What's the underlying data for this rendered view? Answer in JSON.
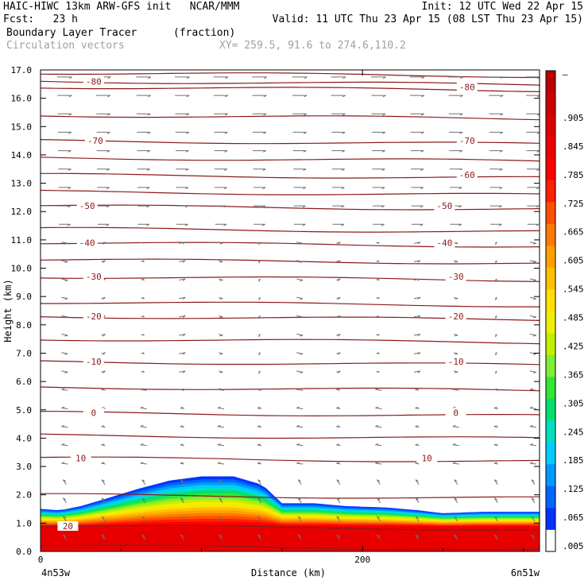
{
  "header": {
    "line1_left": "HAIC-HIWC 13km ARW-GFS init   NCAR/MMM",
    "line1_right": "Init: 12 UTC Wed 22 Apr 15",
    "fcst": "Fcst:   23 h",
    "valid": "Valid: 11 UTC Thu 23 Apr 15 (08 LST Thu 23 Apr 15)",
    "field_name": "Boundary Layer Tracer",
    "field_unit": "(fraction)",
    "vectors_label": "Circulation vectors",
    "xy_label": "XY= 259.5, 91.6 to 274.6,110.2"
  },
  "chart_data": {
    "type": "heatmap",
    "xlabel": "Distance (km)",
    "ylabel": "Height (km)",
    "xlim": [
      0,
      310
    ],
    "ylim": [
      0,
      17
    ],
    "x_ticks": [
      {
        "value": 0,
        "label": "0"
      },
      {
        "value": 200,
        "label": "200"
      }
    ],
    "x_end_labels": {
      "left": "4n53w",
      "right": "6n51w"
    },
    "y_ticks": [
      "0.0",
      "1.0",
      "2.0",
      "3.0",
      "4.0",
      "5.0",
      "6.0",
      "7.0",
      "8.0",
      "9.0",
      "10.0",
      "11.0",
      "12.0",
      "13.0",
      "14.0",
      "15.0",
      "16.0",
      "17.0"
    ],
    "colorbar": {
      "labels": [
        ".005",
        ".065",
        ".125",
        ".185",
        ".245",
        ".305",
        ".365",
        ".425",
        ".485",
        ".545",
        ".605",
        ".665",
        ".725",
        ".785",
        ".845",
        ".905",
        "–"
      ],
      "colors": [
        "#ffffff",
        "#0033ff",
        "#0066ff",
        "#0099ff",
        "#00ccff",
        "#00e0c0",
        "#00e070",
        "#33e633",
        "#80ee33",
        "#c0f000",
        "#eef000",
        "#ffe000",
        "#ffc000",
        "#ffa000",
        "#ff7a00",
        "#ff5000",
        "#ff2000",
        "#ff0000",
        "#ee0000",
        "#dd0000",
        "#cc0000",
        "#bb0000"
      ]
    },
    "temperature_contours": {
      "color": "#8b1a1a",
      "levels": [
        20,
        10,
        0,
        -10,
        -20,
        -30,
        -40,
        -50,
        -60,
        -70,
        -80
      ],
      "labeled": [
        {
          "value": "20",
          "x": 17,
          "h": 0.9
        },
        {
          "value": "10",
          "x": 25,
          "h": 3.3
        },
        {
          "value": "10",
          "x": 240,
          "h": 3.3
        },
        {
          "value": "0",
          "x": 33,
          "h": 4.9
        },
        {
          "value": "0",
          "x": 258,
          "h": 4.9
        },
        {
          "value": "-10",
          "x": 33,
          "h": 6.7
        },
        {
          "value": "-10",
          "x": 258,
          "h": 6.7
        },
        {
          "value": "-20",
          "x": 33,
          "h": 8.3
        },
        {
          "value": "-20",
          "x": 258,
          "h": 8.3
        },
        {
          "value": "-30",
          "x": 33,
          "h": 9.7
        },
        {
          "value": "-30",
          "x": 258,
          "h": 9.7
        },
        {
          "value": "-40",
          "x": 29,
          "h": 10.9
        },
        {
          "value": "-40",
          "x": 251,
          "h": 10.9
        },
        {
          "value": "-50",
          "x": 29,
          "h": 12.2
        },
        {
          "value": "-50",
          "x": 251,
          "h": 12.2
        },
        {
          "value": "-60",
          "x": 265,
          "h": 13.3
        },
        {
          "value": "-70",
          "x": 34,
          "h": 14.5
        },
        {
          "value": "-70",
          "x": 265,
          "h": 14.5
        },
        {
          "value": "-80",
          "x": 33,
          "h": 16.6
        },
        {
          "value": "-80",
          "x": 265,
          "h": 16.4
        }
      ],
      "unlabeled_heights": [
        0.2,
        2.0,
        4.1,
        5.8,
        7.5,
        8.8,
        10.3,
        11.4,
        12.7,
        13.9,
        15.4,
        16.9
      ]
    },
    "tracer_top_km": [
      [
        0,
        1.5
      ],
      [
        12,
        1.45
      ],
      [
        25,
        1.6
      ],
      [
        40,
        1.85
      ],
      [
        60,
        2.2
      ],
      [
        80,
        2.5
      ],
      [
        100,
        2.65
      ],
      [
        120,
        2.65
      ],
      [
        138,
        2.35
      ],
      [
        150,
        1.7
      ],
      [
        170,
        1.7
      ],
      [
        190,
        1.6
      ],
      [
        215,
        1.55
      ],
      [
        235,
        1.45
      ],
      [
        250,
        1.35
      ],
      [
        275,
        1.4
      ],
      [
        310,
        1.4
      ]
    ]
  }
}
